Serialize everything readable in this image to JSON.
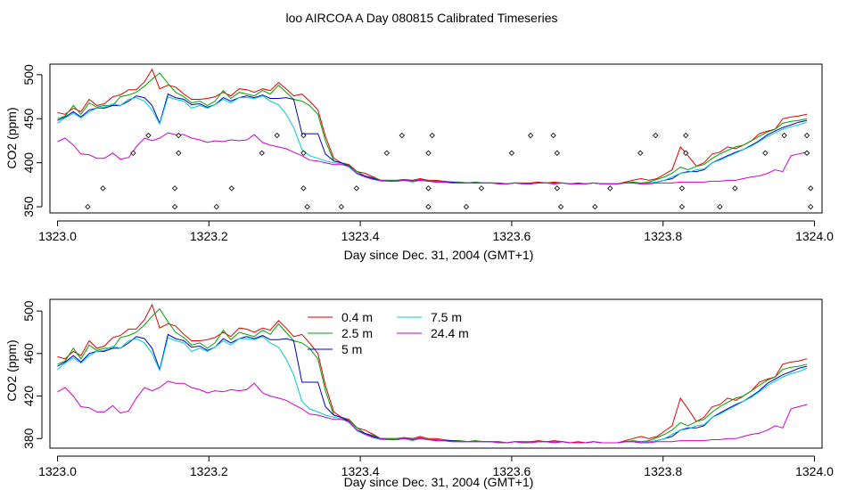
{
  "title": "loo AIRCOA A  Day 080815  Calibrated Timeseries",
  "chart_data": [
    {
      "type": "line",
      "xlabel": "Day since Dec. 31, 2004 (GMT+1)",
      "ylabel": "CO2 (ppm)",
      "xlim": [
        1322.99,
        1324.01
      ],
      "ylim": [
        343,
        512
      ],
      "xticks": [
        1323.0,
        1323.2,
        1323.4,
        1323.6,
        1323.8,
        1324.0
      ],
      "xtick_labels": [
        "1323.0",
        "1323.2",
        "1323.4",
        "1323.6",
        "1323.8",
        "1324.0"
      ],
      "yticks": [
        350,
        400,
        450,
        500
      ],
      "ytick_labels": [
        "350",
        "400",
        "450",
        "500"
      ],
      "x": [
        1323.0,
        1323.01,
        1323.021,
        1323.031,
        1323.042,
        1323.052,
        1323.062,
        1323.073,
        1323.083,
        1323.094,
        1323.104,
        1323.115,
        1323.125,
        1323.135,
        1323.146,
        1323.156,
        1323.167,
        1323.177,
        1323.188,
        1323.198,
        1323.208,
        1323.219,
        1323.229,
        1323.24,
        1323.25,
        1323.26,
        1323.271,
        1323.281,
        1323.292,
        1323.302,
        1323.312,
        1323.323,
        1323.333,
        1323.344,
        1323.354,
        1323.365,
        1323.375,
        1323.385,
        1323.396,
        1323.406,
        1323.417,
        1323.427,
        1323.438,
        1323.448,
        1323.458,
        1323.469,
        1323.479,
        1323.49,
        1323.5,
        1323.51,
        1323.521,
        1323.531,
        1323.542,
        1323.552,
        1323.562,
        1323.573,
        1323.583,
        1323.594,
        1323.604,
        1323.615,
        1323.625,
        1323.635,
        1323.646,
        1323.656,
        1323.667,
        1323.677,
        1323.688,
        1323.698,
        1323.708,
        1323.719,
        1323.729,
        1323.74,
        1323.75,
        1323.76,
        1323.771,
        1323.781,
        1323.792,
        1323.802,
        1323.812,
        1323.823,
        1323.833,
        1323.844,
        1323.854,
        1323.865,
        1323.875,
        1323.885,
        1323.896,
        1323.906,
        1323.917,
        1323.927,
        1323.938,
        1323.948,
        1323.958,
        1323.969,
        1323.979,
        1323.99
      ],
      "series": [
        {
          "name": "0.4 m",
          "color": "#e00000",
          "values": [
            457,
            455,
            462,
            458,
            472,
            465,
            467,
            475,
            477,
            483,
            483,
            492,
            506,
            484,
            488,
            486,
            478,
            472,
            472,
            473,
            475,
            480,
            476,
            484,
            483,
            480,
            484,
            482,
            491,
            484,
            476,
            478,
            470,
            460,
            430,
            405,
            400,
            398,
            390,
            388,
            384,
            380,
            380,
            380,
            381,
            380,
            382,
            380,
            380,
            379,
            378,
            378,
            377,
            378,
            377,
            377,
            377,
            376,
            377,
            377,
            377,
            378,
            377,
            378,
            377,
            376,
            377,
            376,
            377,
            376,
            376,
            376,
            378,
            380,
            382,
            380,
            382,
            387,
            392,
            418,
            408,
            396,
            400,
            410,
            412,
            418,
            416,
            420,
            425,
            433,
            436,
            438,
            450,
            452,
            453,
            455
          ]
        },
        {
          "name": "2.5 m",
          "color": "#00a000",
          "values": [
            450,
            453,
            465,
            455,
            468,
            463,
            465,
            465,
            475,
            477,
            480,
            487,
            495,
            502,
            490,
            480,
            475,
            468,
            470,
            465,
            470,
            482,
            473,
            480,
            478,
            476,
            482,
            478,
            488,
            480,
            472,
            470,
            465,
            455,
            425,
            402,
            400,
            397,
            390,
            385,
            383,
            380,
            380,
            380,
            381,
            379,
            381,
            379,
            379,
            378,
            378,
            378,
            377,
            378,
            377,
            377,
            377,
            376,
            377,
            377,
            376,
            377,
            377,
            377,
            377,
            376,
            376,
            376,
            377,
            376,
            376,
            376,
            377,
            378,
            377,
            378,
            381,
            384,
            388,
            395,
            392,
            396,
            398,
            405,
            410,
            414,
            418,
            420,
            425,
            430,
            435,
            438,
            445,
            447,
            448,
            450
          ]
        },
        {
          "name": "5 m",
          "color": "#0000c0",
          "values": [
            448,
            452,
            458,
            452,
            460,
            462,
            462,
            465,
            465,
            470,
            476,
            474,
            465,
            445,
            478,
            474,
            472,
            466,
            467,
            463,
            466,
            474,
            470,
            474,
            476,
            474,
            477,
            473,
            473,
            474,
            472,
            433,
            433,
            433,
            410,
            402,
            400,
            396,
            388,
            385,
            382,
            380,
            379,
            379,
            380,
            379,
            380,
            379,
            378,
            378,
            378,
            377,
            377,
            377,
            377,
            377,
            376,
            376,
            377,
            376,
            376,
            377,
            377,
            376,
            377,
            376,
            376,
            376,
            377,
            376,
            376,
            376,
            377,
            377,
            376,
            377,
            378,
            380,
            382,
            388,
            390,
            390,
            392,
            400,
            404,
            408,
            412,
            415,
            420,
            425,
            432,
            436,
            440,
            443,
            446,
            448
          ]
        },
        {
          "name": "7.5 m",
          "color": "#00cccc",
          "values": [
            445,
            451,
            456,
            451,
            458,
            462,
            463,
            467,
            465,
            472,
            474,
            470,
            460,
            444,
            475,
            472,
            470,
            462,
            465,
            462,
            466,
            472,
            468,
            474,
            474,
            473,
            476,
            470,
            466,
            455,
            440,
            415,
            408,
            405,
            402,
            400,
            399,
            395,
            387,
            384,
            381,
            379,
            379,
            379,
            380,
            378,
            380,
            379,
            378,
            378,
            377,
            377,
            377,
            377,
            377,
            377,
            376,
            376,
            377,
            376,
            376,
            377,
            377,
            376,
            377,
            376,
            376,
            376,
            377,
            376,
            376,
            376,
            377,
            377,
            376,
            377,
            378,
            380,
            384,
            388,
            389,
            392,
            393,
            400,
            403,
            407,
            411,
            415,
            419,
            424,
            430,
            434,
            438,
            441,
            443,
            446
          ]
        },
        {
          "name": "24.4 m",
          "color": "#d000d0",
          "values": [
            424,
            428,
            420,
            410,
            409,
            405,
            405,
            411,
            404,
            406,
            418,
            428,
            425,
            428,
            434,
            432,
            432,
            428,
            426,
            423,
            425,
            424,
            426,
            425,
            426,
            432,
            423,
            420,
            418,
            416,
            412,
            408,
            403,
            402,
            400,
            398,
            398,
            396,
            388,
            384,
            381,
            380,
            379,
            379,
            380,
            379,
            380,
            379,
            378,
            378,
            377,
            377,
            377,
            377,
            377,
            377,
            376,
            376,
            377,
            376,
            376,
            377,
            377,
            376,
            377,
            376,
            376,
            376,
            377,
            376,
            376,
            376,
            377,
            377,
            376,
            376,
            377,
            377,
            377,
            378,
            378,
            378,
            378,
            379,
            379,
            380,
            380,
            382,
            384,
            385,
            388,
            392,
            390,
            408,
            410,
            412
          ]
        }
      ],
      "markers": {
        "style": "open-diamond",
        "points": [
          [
            1323.04,
            350
          ],
          [
            1323.06,
            371
          ],
          [
            1323.1,
            411
          ],
          [
            1323.12,
            431
          ],
          [
            1323.155,
            350
          ],
          [
            1323.155,
            371
          ],
          [
            1323.16,
            411
          ],
          [
            1323.16,
            431
          ],
          [
            1323.21,
            350
          ],
          [
            1323.23,
            371
          ],
          [
            1323.27,
            411
          ],
          [
            1323.29,
            431
          ],
          [
            1323.325,
            371
          ],
          [
            1323.325,
            411
          ],
          [
            1323.325,
            431
          ],
          [
            1323.33,
            350
          ],
          [
            1323.375,
            350
          ],
          [
            1323.395,
            371
          ],
          [
            1323.435,
            411
          ],
          [
            1323.455,
            431
          ],
          [
            1323.49,
            350
          ],
          [
            1323.49,
            371
          ],
          [
            1323.49,
            411
          ],
          [
            1323.495,
            431
          ],
          [
            1323.54,
            350
          ],
          [
            1323.56,
            371
          ],
          [
            1323.6,
            411
          ],
          [
            1323.625,
            431
          ],
          [
            1323.655,
            431
          ],
          [
            1323.66,
            371
          ],
          [
            1323.66,
            411
          ],
          [
            1323.665,
            350
          ],
          [
            1323.71,
            350
          ],
          [
            1323.73,
            371
          ],
          [
            1323.77,
            411
          ],
          [
            1323.79,
            431
          ],
          [
            1323.825,
            350
          ],
          [
            1323.825,
            371
          ],
          [
            1323.83,
            411
          ],
          [
            1323.83,
            431
          ],
          [
            1323.875,
            350
          ],
          [
            1323.895,
            371
          ],
          [
            1323.935,
            411
          ],
          [
            1323.96,
            431
          ],
          [
            1323.99,
            431
          ],
          [
            1323.99,
            411
          ],
          [
            1323.995,
            371
          ],
          [
            1323.995,
            350
          ]
        ]
      }
    },
    {
      "type": "line",
      "xlabel": "Day since Dec. 31, 2004 (GMT+1)",
      "ylabel": "CO2 (ppm)",
      "xlim": [
        1322.99,
        1324.01
      ],
      "ylim": [
        371,
        511
      ],
      "xticks": [
        1323.0,
        1323.2,
        1323.4,
        1323.6,
        1323.8,
        1324.0
      ],
      "xtick_labels": [
        "1323.0",
        "1323.2",
        "1323.4",
        "1323.6",
        "1323.8",
        "1324.0"
      ],
      "yticks": [
        380,
        420,
        460,
        500
      ],
      "ytick_labels": [
        "380",
        "420",
        "460",
        "500"
      ],
      "legend": {
        "position": "top-center",
        "entries": [
          {
            "label": "0.4 m",
            "color": "#e00000"
          },
          {
            "label": "2.5 m",
            "color": "#00a000"
          },
          {
            "label": "5 m",
            "color": "#0000c0"
          },
          {
            "label": "7.5 m",
            "color": "#00cccc"
          },
          {
            "label": "24.4 m",
            "color": "#d000d0"
          }
        ]
      },
      "series_ref": "same series as panel 1"
    }
  ]
}
